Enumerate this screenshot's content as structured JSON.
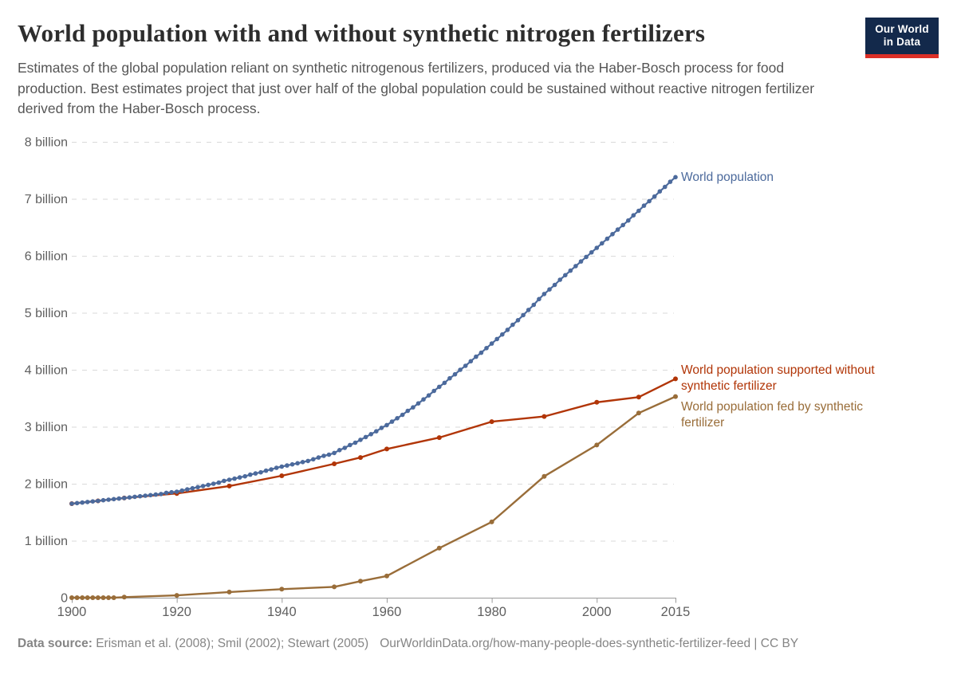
{
  "header": {
    "title": "World population with and without synthetic nitrogen fertilizers",
    "subtitle": "Estimates of the global population reliant on synthetic nitrogenous fertilizers, produced via the Haber-Bosch process for food production. Best estimates project that just over half of the global population could be sustained without reactive nitrogen fertilizer derived from the Haber-Bosch process.",
    "logo": {
      "line1": "Our World",
      "line2": "in Data",
      "bg_color": "#13294b",
      "accent_color": "#dc2f27"
    }
  },
  "footer": {
    "source_label": "Data source:",
    "source_text": " Erisman et al. (2008); Smil (2002); Stewart (2005)",
    "url_text": "OurWorldinData.org/how-many-people-does-synthetic-fertilizer-feed | CC BY"
  },
  "chart_data": {
    "type": "line",
    "title": "World population with and without synthetic nitrogen fertilizers",
    "xlabel": "",
    "ylabel": "",
    "x_range": [
      1900,
      2015
    ],
    "y_range": [
      0,
      8
    ],
    "grid": "horizontal-dashed",
    "legend_position": "right-of-line-ends",
    "x_ticks": [
      1900,
      1920,
      1940,
      1960,
      1980,
      2000,
      2015
    ],
    "y_ticks": [
      {
        "value": 0,
        "label": "0"
      },
      {
        "value": 1,
        "label": "1 billion"
      },
      {
        "value": 2,
        "label": "2 billion"
      },
      {
        "value": 3,
        "label": "3 billion"
      },
      {
        "value": 4,
        "label": "4 billion"
      },
      {
        "value": 5,
        "label": "5 billion"
      },
      {
        "value": 6,
        "label": "6 billion"
      },
      {
        "value": 7,
        "label": "7 billion"
      },
      {
        "value": 8,
        "label": "8 billion"
      }
    ],
    "unit": "billion people",
    "series": [
      {
        "name": "World population",
        "color": "#4c6a9c",
        "points": [
          [
            1900,
            1.65
          ],
          [
            1901,
            1.66
          ],
          [
            1902,
            1.67
          ],
          [
            1903,
            1.68
          ],
          [
            1904,
            1.69
          ],
          [
            1905,
            1.7
          ],
          [
            1906,
            1.71
          ],
          [
            1907,
            1.72
          ],
          [
            1908,
            1.73
          ],
          [
            1909,
            1.74
          ],
          [
            1910,
            1.75
          ],
          [
            1911,
            1.76
          ],
          [
            1912,
            1.77
          ],
          [
            1913,
            1.78
          ],
          [
            1914,
            1.79
          ],
          [
            1915,
            1.8
          ],
          [
            1916,
            1.81
          ],
          [
            1917,
            1.82
          ],
          [
            1918,
            1.84
          ],
          [
            1919,
            1.85
          ],
          [
            1920,
            1.86
          ],
          [
            1921,
            1.88
          ],
          [
            1922,
            1.9
          ],
          [
            1923,
            1.92
          ],
          [
            1924,
            1.94
          ],
          [
            1925,
            1.96
          ],
          [
            1926,
            1.98
          ],
          [
            1927,
            2.0
          ],
          [
            1928,
            2.02
          ],
          [
            1929,
            2.05
          ],
          [
            1930,
            2.07
          ],
          [
            1931,
            2.09
          ],
          [
            1932,
            2.11
          ],
          [
            1933,
            2.13
          ],
          [
            1934,
            2.16
          ],
          [
            1935,
            2.18
          ],
          [
            1936,
            2.2
          ],
          [
            1937,
            2.23
          ],
          [
            1938,
            2.25
          ],
          [
            1939,
            2.28
          ],
          [
            1940,
            2.3
          ],
          [
            1941,
            2.32
          ],
          [
            1942,
            2.34
          ],
          [
            1943,
            2.36
          ],
          [
            1944,
            2.38
          ],
          [
            1945,
            2.4
          ],
          [
            1946,
            2.43
          ],
          [
            1947,
            2.46
          ],
          [
            1948,
            2.49
          ],
          [
            1949,
            2.51
          ],
          [
            1950,
            2.54
          ],
          [
            1951,
            2.59
          ],
          [
            1952,
            2.63
          ],
          [
            1953,
            2.68
          ],
          [
            1954,
            2.72
          ],
          [
            1955,
            2.77
          ],
          [
            1956,
            2.82
          ],
          [
            1957,
            2.87
          ],
          [
            1958,
            2.92
          ],
          [
            1959,
            2.98
          ],
          [
            1960,
            3.03
          ],
          [
            1961,
            3.09
          ],
          [
            1962,
            3.15
          ],
          [
            1963,
            3.21
          ],
          [
            1964,
            3.28
          ],
          [
            1965,
            3.34
          ],
          [
            1966,
            3.41
          ],
          [
            1967,
            3.48
          ],
          [
            1968,
            3.55
          ],
          [
            1969,
            3.63
          ],
          [
            1970,
            3.7
          ],
          [
            1971,
            3.77
          ],
          [
            1972,
            3.85
          ],
          [
            1973,
            3.92
          ],
          [
            1974,
            4.0
          ],
          [
            1975,
            4.07
          ],
          [
            1976,
            4.15
          ],
          [
            1977,
            4.23
          ],
          [
            1978,
            4.3
          ],
          [
            1979,
            4.38
          ],
          [
            1980,
            4.46
          ],
          [
            1981,
            4.54
          ],
          [
            1982,
            4.62
          ],
          [
            1983,
            4.7
          ],
          [
            1984,
            4.79
          ],
          [
            1985,
            4.87
          ],
          [
            1986,
            4.96
          ],
          [
            1987,
            5.05
          ],
          [
            1988,
            5.14
          ],
          [
            1989,
            5.24
          ],
          [
            1990,
            5.33
          ],
          [
            1991,
            5.41
          ],
          [
            1992,
            5.49
          ],
          [
            1993,
            5.58
          ],
          [
            1994,
            5.66
          ],
          [
            1995,
            5.74
          ],
          [
            1996,
            5.82
          ],
          [
            1997,
            5.9
          ],
          [
            1998,
            5.98
          ],
          [
            1999,
            6.06
          ],
          [
            2000,
            6.14
          ],
          [
            2001,
            6.22
          ],
          [
            2002,
            6.3
          ],
          [
            2003,
            6.38
          ],
          [
            2004,
            6.46
          ],
          [
            2005,
            6.54
          ],
          [
            2006,
            6.62
          ],
          [
            2007,
            6.71
          ],
          [
            2008,
            6.79
          ],
          [
            2009,
            6.88
          ],
          [
            2010,
            6.96
          ],
          [
            2011,
            7.04
          ],
          [
            2012,
            7.13
          ],
          [
            2013,
            7.21
          ],
          [
            2014,
            7.3
          ],
          [
            2015,
            7.38
          ]
        ]
      },
      {
        "name": "World population supported without synthetic fertilizer",
        "color": "#b13507",
        "points": [
          [
            1900,
            1.65
          ],
          [
            1905,
            1.7
          ],
          [
            1910,
            1.75
          ],
          [
            1920,
            1.83
          ],
          [
            1930,
            1.96
          ],
          [
            1940,
            2.14
          ],
          [
            1950,
            2.35
          ],
          [
            1955,
            2.46
          ],
          [
            1960,
            2.61
          ],
          [
            1970,
            2.81
          ],
          [
            1980,
            3.09
          ],
          [
            1990,
            3.18
          ],
          [
            2000,
            3.43
          ],
          [
            2008,
            3.52
          ],
          [
            2015,
            3.84
          ]
        ]
      },
      {
        "name": "World population fed by synthetic fertilizer",
        "color": "#996d39",
        "points": [
          [
            1900,
            0
          ],
          [
            1901,
            0
          ],
          [
            1902,
            0
          ],
          [
            1903,
            0
          ],
          [
            1904,
            0
          ],
          [
            1905,
            0
          ],
          [
            1906,
            0
          ],
          [
            1907,
            0
          ],
          [
            1908,
            0
          ],
          [
            1910,
            0.01
          ],
          [
            1920,
            0.04
          ],
          [
            1930,
            0.1
          ],
          [
            1940,
            0.15
          ],
          [
            1950,
            0.19
          ],
          [
            1955,
            0.29
          ],
          [
            1960,
            0.38
          ],
          [
            1970,
            0.87
          ],
          [
            1980,
            1.33
          ],
          [
            1990,
            2.13
          ],
          [
            2000,
            2.68
          ],
          [
            2008,
            3.24
          ],
          [
            2015,
            3.53
          ]
        ]
      }
    ]
  }
}
